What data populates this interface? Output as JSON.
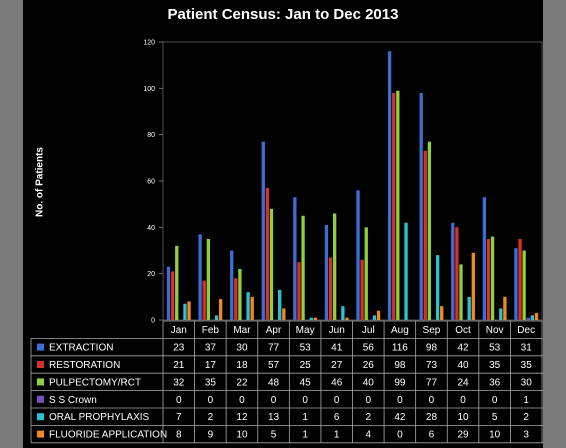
{
  "chart_data": {
    "type": "bar",
    "title": "Patient Census: Jan to Dec 2013",
    "ylabel": "No. of Patients",
    "xlabel": "",
    "ylim": [
      0,
      120
    ],
    "yticks": [
      0,
      20,
      40,
      60,
      80,
      100,
      120
    ],
    "grid": false,
    "legend": "data-table-left",
    "categories": [
      "Jan",
      "Feb",
      "Mar",
      "Apr",
      "May",
      "Jun",
      "Jul",
      "Aug",
      "Sep",
      "Oct",
      "Nov",
      "Dec"
    ],
    "series": [
      {
        "name": "EXTRACTION",
        "color": "#3b6fd6",
        "values": [
          23,
          37,
          30,
          77,
          53,
          41,
          56,
          116,
          98,
          42,
          53,
          31
        ]
      },
      {
        "name": "RESTORATION",
        "color": "#d8302a",
        "values": [
          21,
          17,
          18,
          57,
          25,
          27,
          26,
          98,
          73,
          40,
          35,
          35
        ]
      },
      {
        "name": "PULPECTOMY/RCT",
        "color": "#8fd13a",
        "values": [
          32,
          35,
          22,
          48,
          45,
          46,
          40,
          99,
          77,
          24,
          36,
          30
        ]
      },
      {
        "name": "S S Crown",
        "color": "#7b4fc4",
        "values": [
          0,
          0,
          0,
          0,
          0,
          0,
          0,
          0,
          0,
          0,
          0,
          1
        ]
      },
      {
        "name": "ORAL PROPHYLAXIS",
        "color": "#2ec1d4",
        "values": [
          7,
          2,
          12,
          13,
          1,
          6,
          2,
          42,
          28,
          10,
          5,
          2
        ]
      },
      {
        "name": "FLUORIDE APPLICATION",
        "color": "#f08a1c",
        "values": [
          8,
          9,
          10,
          5,
          1,
          1,
          4,
          0,
          6,
          29,
          10,
          3
        ]
      }
    ]
  }
}
